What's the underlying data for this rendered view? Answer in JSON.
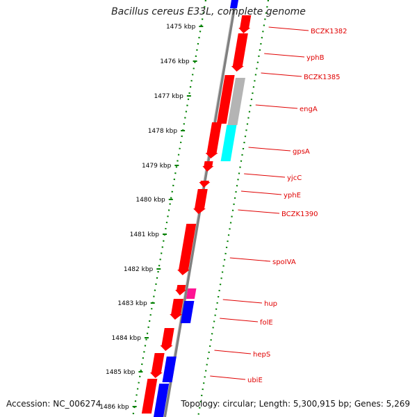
{
  "title": "Bacillus cereus E33L, complete genome",
  "footer": {
    "accession": "Accession: NC_006274",
    "summary": "Topology: circular; Length: 5,300,915 bp; Genes: 5,269"
  },
  "scale_labels": [
    "1475 kbp",
    "1476 kbp",
    "1477 kbp",
    "1478 kbp",
    "1479 kbp",
    "1480 kbp",
    "1481 kbp",
    "1482 kbp",
    "1483 kbp",
    "1484 kbp",
    "1485 kbp",
    "1486 kbp"
  ],
  "gene_labels": [
    "BCZK1382",
    "yphB",
    "BCZK1385",
    "engA",
    "gpsA",
    "yjcC",
    "yphE",
    "BCZK1390",
    "spoIVA",
    "hup",
    "folE",
    "hepS",
    "ubiE"
  ],
  "colors": {
    "forward_gene": "#ff0000",
    "rna_gene": "#ff1493",
    "blue_feature": "#0000ff",
    "cyan_feature": "#00ffff",
    "gray_feature": "#b4b4b4",
    "backbone": "#808080",
    "tick_green": "#008000",
    "label_red": "#e00000"
  }
}
